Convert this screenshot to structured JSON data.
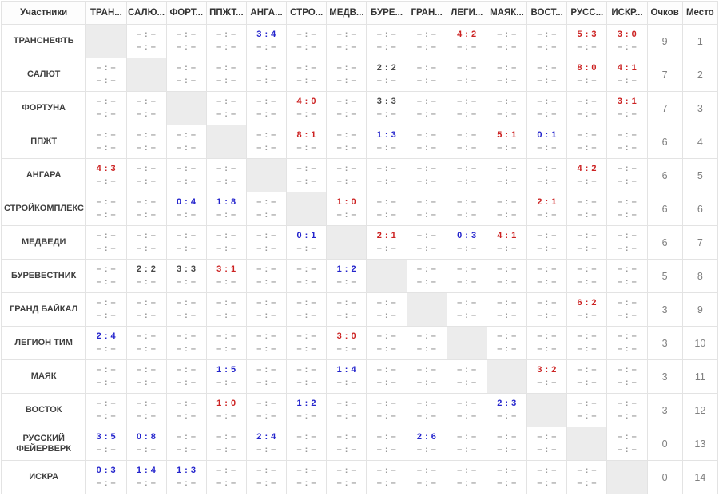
{
  "colors": {
    "win": "#cc2222",
    "loss": "#2424cc",
    "draw": "#484848",
    "placeholder": "#9a9a9a",
    "diagonal_bg": "#ececec",
    "border": "#e3e3e3"
  },
  "table": {
    "corner_header": "Участники",
    "points_header": "Очков",
    "place_header": "Место",
    "placeholder_score": "– : –",
    "column_headers": [
      "ТРАН...",
      "САЛЮ...",
      "ФОРТ...",
      "ППЖТ...",
      "АНГА...",
      "СТРО...",
      "МЕДВ...",
      "БУРЕ...",
      "ГРАН...",
      "ЛЕГИ...",
      "МАЯК...",
      "ВОСТ...",
      "РУСС...",
      "ИСКР..."
    ],
    "rows": [
      {
        "team": "ТРАНСНЕФТЬ",
        "points": "9",
        "place": "1",
        "results": [
          null,
          {},
          {},
          {},
          {
            "score": "3 : 4",
            "outcome": "loss"
          },
          {},
          {},
          {},
          {},
          {
            "score": "4 : 2",
            "outcome": "win"
          },
          {},
          {},
          {
            "score": "5 : 3",
            "outcome": "win"
          },
          {
            "score": "3 : 0",
            "outcome": "win"
          }
        ]
      },
      {
        "team": "САЛЮТ",
        "points": "7",
        "place": "2",
        "results": [
          {},
          null,
          {},
          {},
          {},
          {},
          {},
          {
            "score": "2 : 2",
            "outcome": "draw"
          },
          {},
          {},
          {},
          {},
          {
            "score": "8 : 0",
            "outcome": "win"
          },
          {
            "score": "4 : 1",
            "outcome": "win"
          }
        ]
      },
      {
        "team": "ФОРТУНА",
        "points": "7",
        "place": "3",
        "results": [
          {},
          {},
          null,
          {},
          {},
          {
            "score": "4 : 0",
            "outcome": "win"
          },
          {},
          {
            "score": "3 : 3",
            "outcome": "draw"
          },
          {},
          {},
          {},
          {},
          {},
          {
            "score": "3 : 1",
            "outcome": "win"
          }
        ]
      },
      {
        "team": "ППЖТ",
        "points": "6",
        "place": "4",
        "results": [
          {},
          {},
          {},
          null,
          {},
          {
            "score": "8 : 1",
            "outcome": "win"
          },
          {},
          {
            "score": "1 : 3",
            "outcome": "loss"
          },
          {},
          {},
          {
            "score": "5 : 1",
            "outcome": "win"
          },
          {
            "score": "0 : 1",
            "outcome": "loss"
          },
          {},
          {}
        ]
      },
      {
        "team": "АНГАРА",
        "points": "6",
        "place": "5",
        "results": [
          {
            "score": "4 : 3",
            "outcome": "win"
          },
          {},
          {},
          {},
          null,
          {},
          {},
          {},
          {},
          {},
          {},
          {},
          {
            "score": "4 : 2",
            "outcome": "win"
          },
          {}
        ]
      },
      {
        "team": "СТРОЙКОМПЛЕКС",
        "points": "6",
        "place": "6",
        "results": [
          {},
          {},
          {
            "score": "0 : 4",
            "outcome": "loss"
          },
          {
            "score": "1 : 8",
            "outcome": "loss"
          },
          {},
          null,
          {
            "score": "1 : 0",
            "outcome": "win"
          },
          {},
          {},
          {},
          {},
          {
            "score": "2 : 1",
            "outcome": "win"
          },
          {},
          {}
        ]
      },
      {
        "team": "МЕДВЕДИ",
        "points": "6",
        "place": "7",
        "results": [
          {},
          {},
          {},
          {},
          {},
          {
            "score": "0 : 1",
            "outcome": "loss"
          },
          null,
          {
            "score": "2 : 1",
            "outcome": "win"
          },
          {},
          {
            "score": "0 : 3",
            "outcome": "loss"
          },
          {
            "score": "4 : 1",
            "outcome": "win"
          },
          {},
          {},
          {}
        ]
      },
      {
        "team": "БУРЕВЕСТНИК",
        "points": "5",
        "place": "8",
        "results": [
          {},
          {
            "score": "2 : 2",
            "outcome": "draw"
          },
          {
            "score": "3 : 3",
            "outcome": "draw"
          },
          {
            "score": "3 : 1",
            "outcome": "win"
          },
          {},
          {},
          {
            "score": "1 : 2",
            "outcome": "loss"
          },
          null,
          {},
          {},
          {},
          {},
          {},
          {}
        ]
      },
      {
        "team": "ГРАНД БАЙКАЛ",
        "points": "3",
        "place": "9",
        "results": [
          {},
          {},
          {},
          {},
          {},
          {},
          {},
          {},
          null,
          {},
          {},
          {},
          {
            "score": "6 : 2",
            "outcome": "win"
          },
          {}
        ]
      },
      {
        "team": "ЛЕГИОН ТИМ",
        "points": "3",
        "place": "10",
        "results": [
          {
            "score": "2 : 4",
            "outcome": "loss"
          },
          {},
          {},
          {},
          {},
          {},
          {
            "score": "3 : 0",
            "outcome": "win"
          },
          {},
          {},
          null,
          {},
          {},
          {},
          {}
        ]
      },
      {
        "team": "МАЯК",
        "points": "3",
        "place": "11",
        "results": [
          {},
          {},
          {},
          {
            "score": "1 : 5",
            "outcome": "loss"
          },
          {},
          {},
          {
            "score": "1 : 4",
            "outcome": "loss"
          },
          {},
          {},
          {},
          null,
          {
            "score": "3 : 2",
            "outcome": "win"
          },
          {},
          {}
        ]
      },
      {
        "team": "ВОСТОК",
        "points": "3",
        "place": "12",
        "results": [
          {},
          {},
          {},
          {
            "score": "1 : 0",
            "outcome": "win"
          },
          {},
          {
            "score": "1 : 2",
            "outcome": "loss"
          },
          {},
          {},
          {},
          {},
          {
            "score": "2 : 3",
            "outcome": "loss"
          },
          null,
          {},
          {}
        ]
      },
      {
        "team": "РУССКИЙ ФЕЙЕРВЕРК",
        "points": "0",
        "place": "13",
        "results": [
          {
            "score": "3 : 5",
            "outcome": "loss"
          },
          {
            "score": "0 : 8",
            "outcome": "loss"
          },
          {},
          {},
          {
            "score": "2 : 4",
            "outcome": "loss"
          },
          {},
          {},
          {},
          {
            "score": "2 : 6",
            "outcome": "loss"
          },
          {},
          {},
          {},
          null,
          {}
        ]
      },
      {
        "team": "ИСКРА",
        "points": "0",
        "place": "14",
        "results": [
          {
            "score": "0 : 3",
            "outcome": "loss"
          },
          {
            "score": "1 : 4",
            "outcome": "loss"
          },
          {
            "score": "1 : 3",
            "outcome": "loss"
          },
          {},
          {},
          {},
          {},
          {},
          {},
          {},
          {},
          {},
          {},
          null
        ]
      }
    ]
  }
}
